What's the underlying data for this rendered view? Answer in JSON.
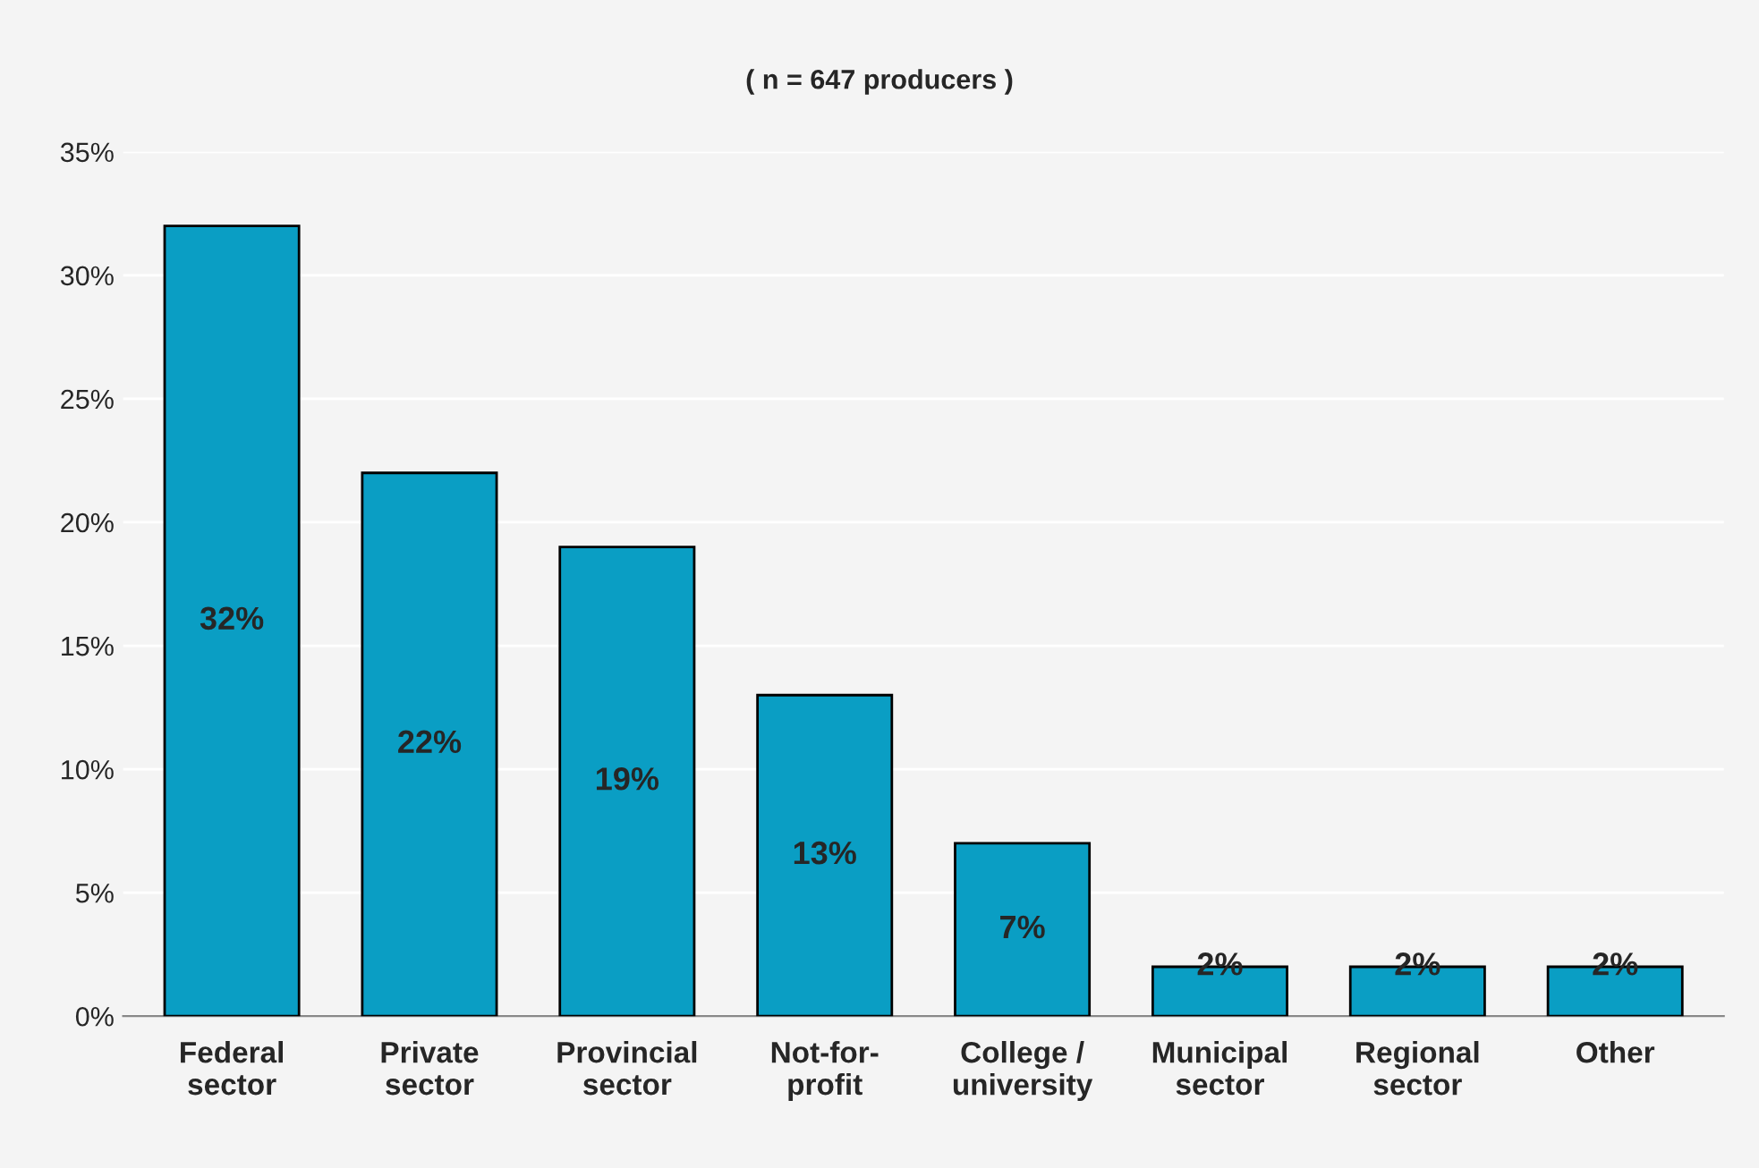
{
  "chart_data": {
    "type": "bar",
    "title": "( n = 647 producers )",
    "categories": [
      "Federal\nsector",
      "Private\nsector",
      "Provincial\nsector",
      "Not-for-\nprofit",
      "College /\nuniversity",
      "Municipal\nsector",
      "Regional\nsector",
      "Other"
    ],
    "values": [
      32,
      22,
      19,
      13,
      7,
      2,
      2,
      2
    ],
    "value_labels": [
      "32%",
      "22%",
      "19%",
      "13%",
      "7%",
      "2%",
      "2%",
      "2%"
    ],
    "color": "#0a9ec4",
    "ylim": [
      0,
      35
    ],
    "yticks": [
      {
        "value": 0,
        "label": "0%"
      },
      {
        "value": 5,
        "label": "5%"
      },
      {
        "value": 10,
        "label": "10%"
      },
      {
        "value": 15,
        "label": "15%"
      },
      {
        "value": 20,
        "label": "20%"
      },
      {
        "value": 25,
        "label": "25%"
      },
      {
        "value": 30,
        "label": "30%"
      },
      {
        "value": 35,
        "label": "35%"
      }
    ],
    "grid": "y",
    "legend": false
  }
}
